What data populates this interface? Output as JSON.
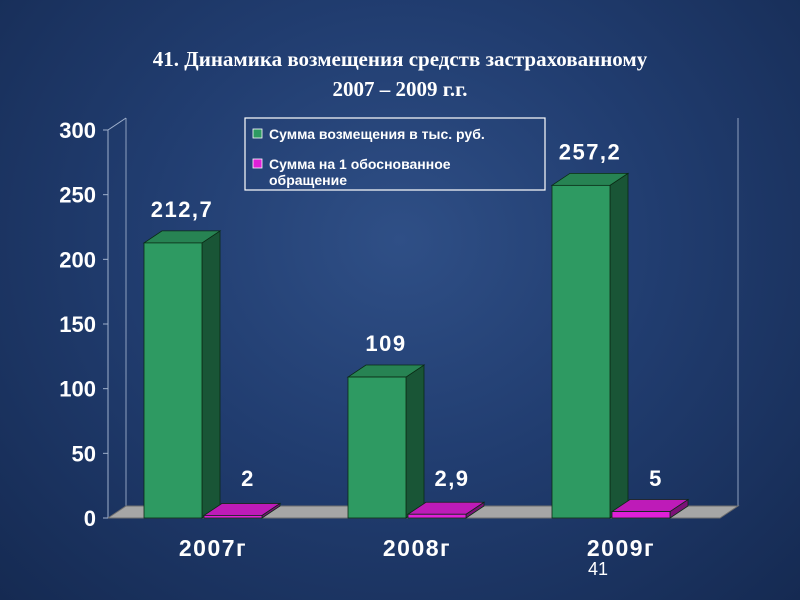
{
  "slide": {
    "title_line1": "41. Динамика возмещения средств застрахованному",
    "title_line2": "2007 – 2009 г.г.",
    "page_number": "41"
  },
  "chart_data": {
    "type": "bar",
    "categories": [
      "2007г",
      "2008г",
      "2009г"
    ],
    "series": [
      {
        "name": "Сумма возмещения в тыс. руб.",
        "values": [
          212.7,
          109,
          257.2
        ],
        "labels": [
          "212,7",
          "109",
          "257,2"
        ],
        "color": "#2e9a62"
      },
      {
        "name": "Сумма на 1 обоснованное обращение",
        "values": [
          2,
          2.9,
          5
        ],
        "labels": [
          "2",
          "2,9",
          "5"
        ],
        "color": "#e020d8"
      }
    ],
    "yticks": [
      0,
      50,
      100,
      150,
      200,
      250,
      300
    ],
    "ylim": [
      0,
      300
    ],
    "legend": "top"
  }
}
